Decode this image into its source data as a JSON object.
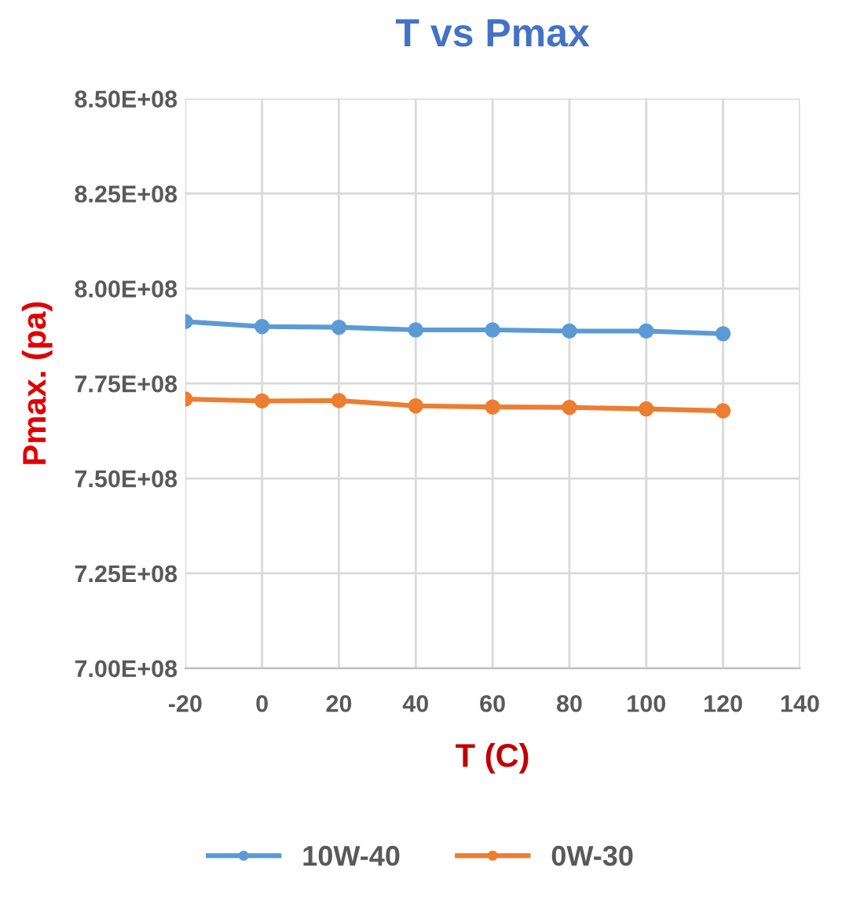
{
  "chart_data": {
    "type": "line",
    "title": "T vs Pmax",
    "xlabel": "T (C)",
    "ylabel": "Pmax. (pa)",
    "x": [
      -20,
      0,
      20,
      40,
      60,
      80,
      100,
      120
    ],
    "series": [
      {
        "name": "10W-40",
        "color": "#5b9bd5",
        "values": [
          791300000,
          790000000,
          789800000,
          789100000,
          789100000,
          788800000,
          788800000,
          788100000
        ]
      },
      {
        "name": "0W-30",
        "color": "#ed7d31",
        "values": [
          770900000,
          770400000,
          770500000,
          769100000,
          768800000,
          768700000,
          768300000,
          767800000
        ]
      }
    ],
    "xlim": [
      -20,
      140
    ],
    "xticks": [
      -20,
      0,
      20,
      40,
      60,
      80,
      100,
      120,
      140
    ],
    "ylim": [
      700000000,
      850000000
    ],
    "yticks": [
      {
        "value": 700000000,
        "label": "7.00E+08"
      },
      {
        "value": 725000000,
        "label": "7.25E+08"
      },
      {
        "value": 750000000,
        "label": "7.50E+08"
      },
      {
        "value": 775000000,
        "label": "7.75E+08"
      },
      {
        "value": 800000000,
        "label": "8.00E+08"
      },
      {
        "value": 825000000,
        "label": "8.25E+08"
      },
      {
        "value": 850000000,
        "label": "8.50E+08"
      }
    ],
    "grid": true,
    "legend": "bottom",
    "marker": "circle",
    "line_style": "solid"
  }
}
